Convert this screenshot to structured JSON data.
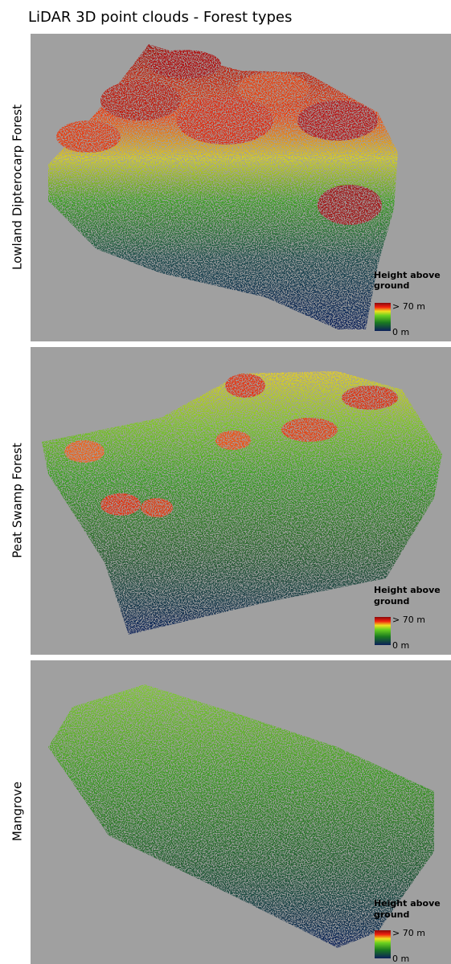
{
  "title": "LiDAR 3D point clouds - Forest types",
  "panels": [
    {
      "label": "Lowland Dipterocarp Forest",
      "legend": {
        "title_line1": "Height above",
        "title_line2": "ground",
        "max_label": "> 70 m",
        "min_label": "0 m"
      }
    },
    {
      "label": "Peat Swamp Forest",
      "legend": {
        "title_line1": "Height above",
        "title_line2": "ground",
        "max_label": "> 70 m",
        "min_label": "0 m"
      }
    },
    {
      "label": "Mangrove",
      "legend": {
        "title_line1": "Height above",
        "title_line2": "ground",
        "max_label": "> 70 m",
        "min_label": "0 m"
      }
    }
  ]
}
